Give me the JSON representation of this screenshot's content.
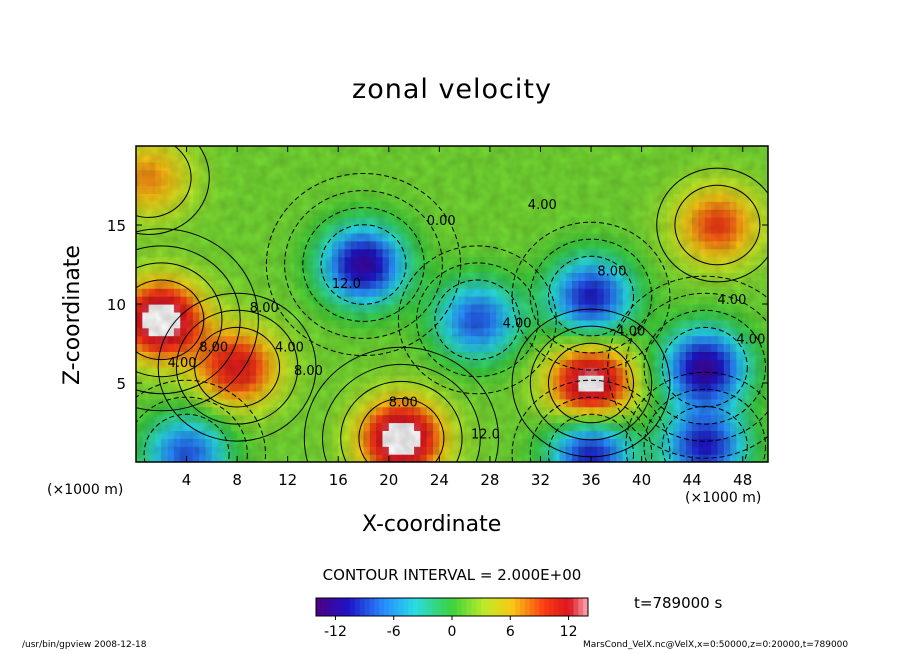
{
  "chart_data": {
    "type": "heatmap",
    "title": "zonal velocity",
    "xlabel": "X-coordinate",
    "ylabel": "Z-coordinate",
    "x_unit_label": "(×1000 m)",
    "xlim": [
      0,
      50
    ],
    "ylim": [
      0,
      20
    ],
    "x_ticks": [
      4,
      8,
      12,
      16,
      20,
      24,
      28,
      32,
      36,
      40,
      44,
      48
    ],
    "y_ticks": [
      5,
      10,
      15
    ],
    "contour_interval_text": "CONTOUR INTERVAL = 2.000E+00",
    "colorbar": {
      "min": -14,
      "max": 14,
      "ticks": [
        -12,
        -6,
        0,
        6,
        12
      ]
    },
    "contour_labels": [
      "8.00",
      "4.00",
      "12.0",
      "0.00",
      "4.00",
      "8.00",
      "4.00",
      "4.00",
      "8.00",
      "12.0",
      "4.00",
      "8.00",
      "4.00",
      "8.00",
      "4.00"
    ],
    "features": [
      {
        "x": 18,
        "z": 12.5,
        "u": -14
      },
      {
        "x": 27,
        "z": 9,
        "u": -10
      },
      {
        "x": 36,
        "z": 10.5,
        "u": -12
      },
      {
        "x": 45,
        "z": 6,
        "u": -14
      },
      {
        "x": 36,
        "z": 0.5,
        "u": -12
      },
      {
        "x": 45,
        "z": 1,
        "u": -12
      },
      {
        "x": 4,
        "z": 0.5,
        "u": -10
      },
      {
        "x": 2,
        "z": 9,
        "u": 14
      },
      {
        "x": 8,
        "z": 6,
        "u": 10
      },
      {
        "x": 21,
        "z": 1.5,
        "u": 14
      },
      {
        "x": 36,
        "z": 5,
        "u": 13
      },
      {
        "x": 46,
        "z": 15,
        "u": 8
      },
      {
        "x": 1,
        "z": 18,
        "u": 6
      }
    ]
  },
  "time_label": "t=789000 s",
  "footer": {
    "left": "/usr/bin/gpview  2008-12-18",
    "right": "MarsCond_VelX.nc@VelX,x=0:50000,z=0:20000,t=789000"
  },
  "colors": {
    "frame": "#000000",
    "background": "#ffffff"
  }
}
